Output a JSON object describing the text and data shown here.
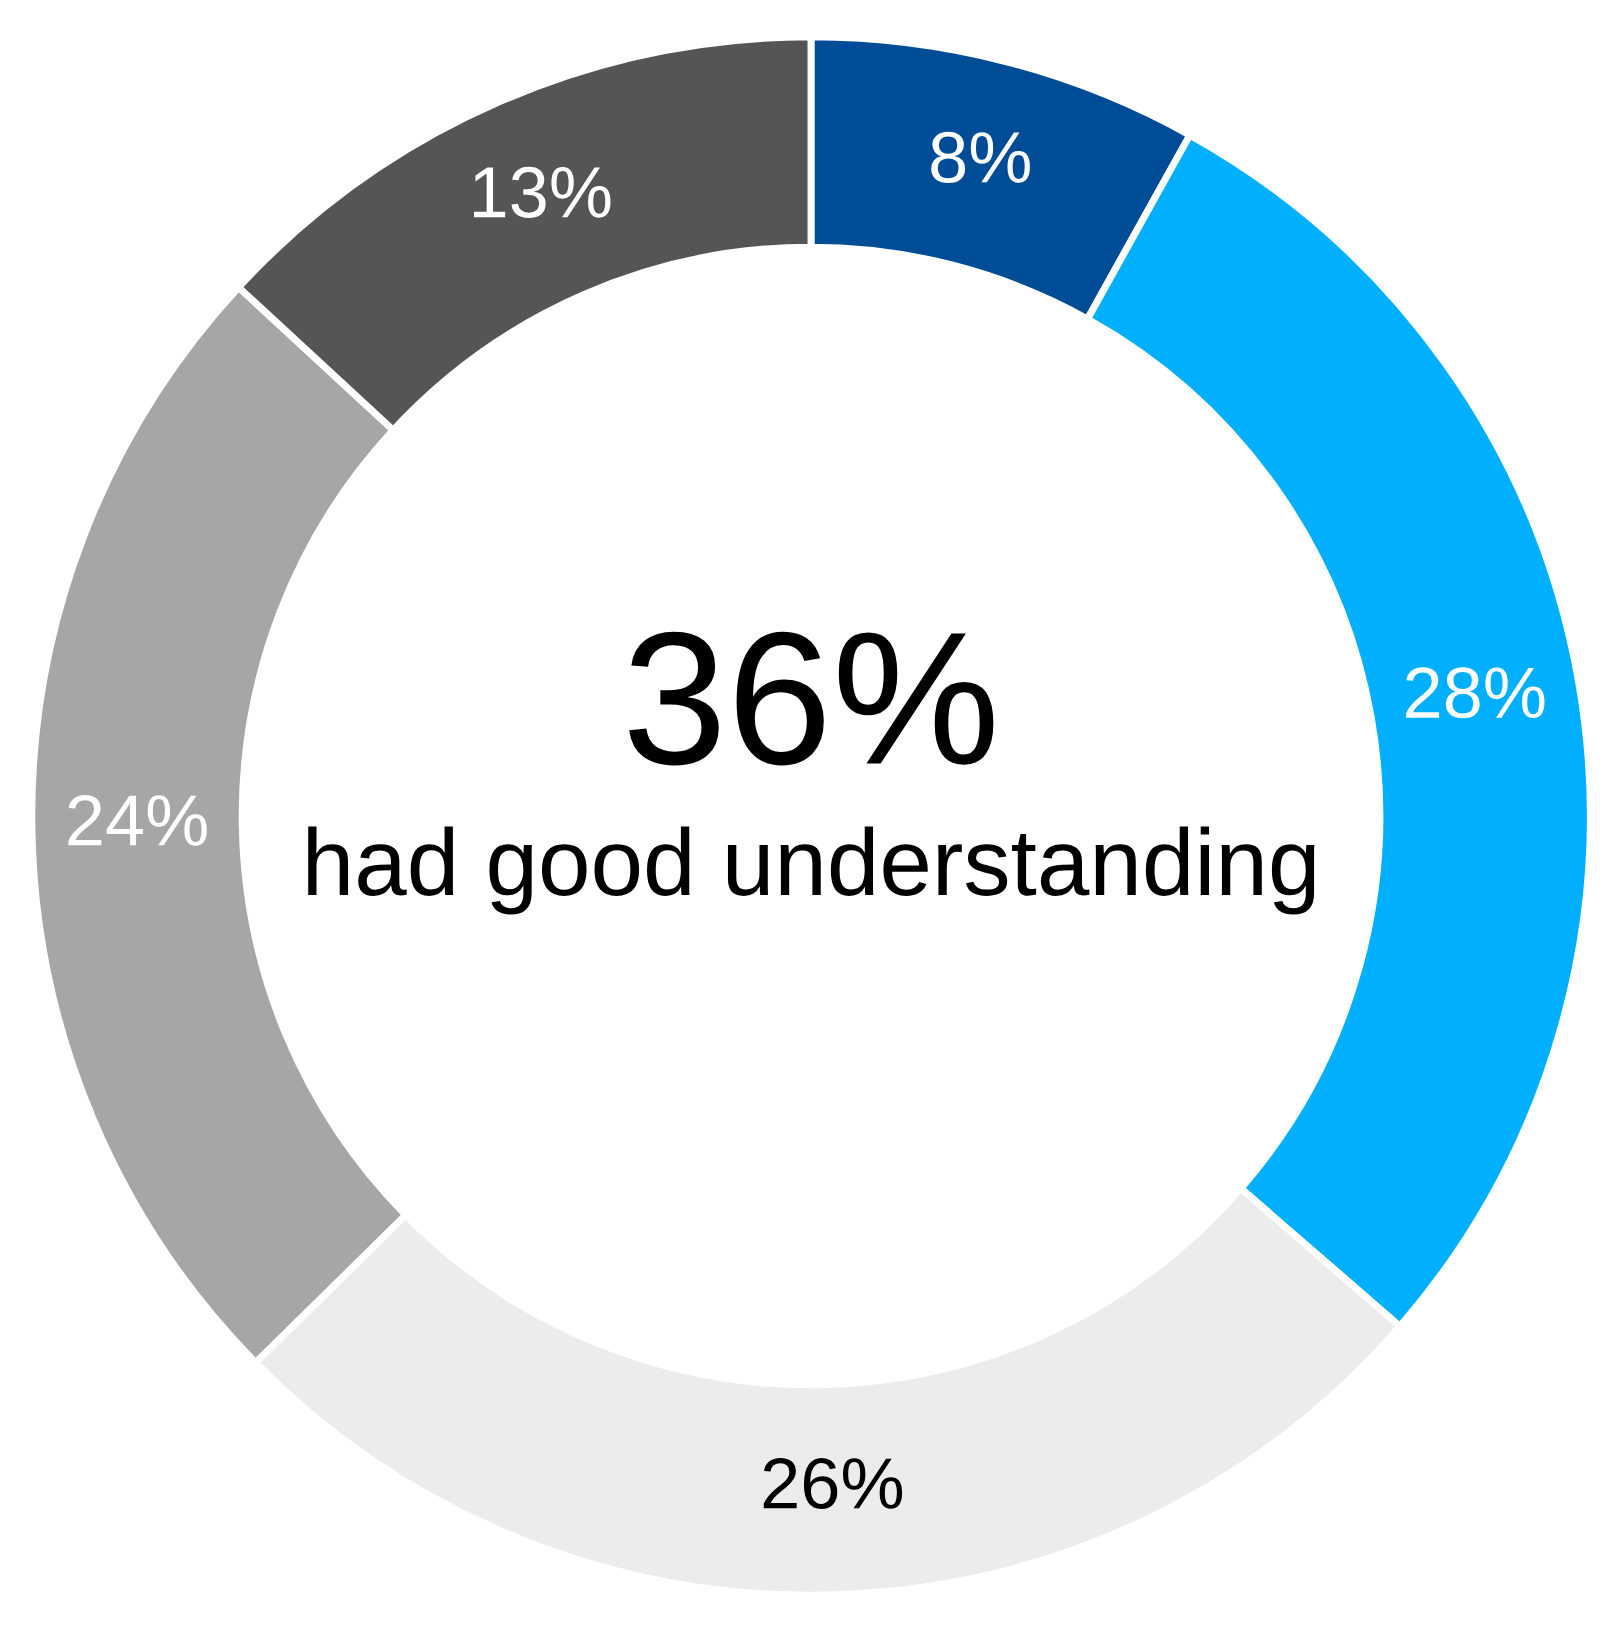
{
  "chart_data": {
    "type": "donut",
    "categories": [
      null,
      null,
      null,
      null,
      null
    ],
    "values": [
      8,
      28,
      26,
      24,
      13
    ],
    "colors": [
      "#004c97",
      "#00b0ff",
      "#ececec",
      "#a6a6a6",
      "#555555"
    ],
    "value_labels": [
      "8%",
      "28%",
      "26%",
      "24%",
      "13%"
    ],
    "annotations": [
      "36%",
      "had good understanding"
    ],
    "legend": false
  }
}
